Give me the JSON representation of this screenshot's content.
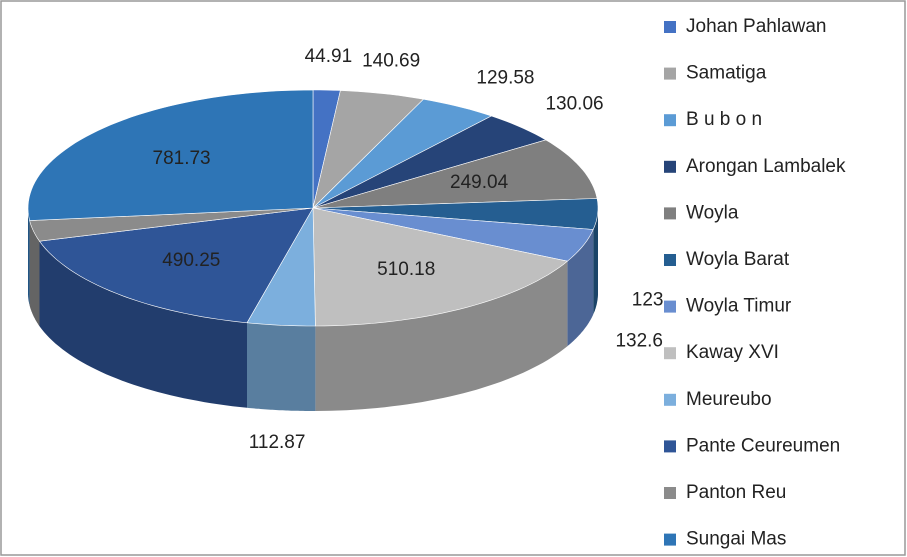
{
  "chart_data": {
    "type": "pie3d",
    "categories": [
      "Johan Pahlawan",
      "Samatiga",
      "B u b o n",
      "Arongan Lambalek",
      "Woyla",
      "Woyla Barat",
      "Woyla Timur",
      "Kaway XVI",
      "Meureubo",
      "Pante Ceureumen",
      "Panton Reu",
      "Sungai Mas"
    ],
    "values": [
      44.91,
      140.69,
      129.58,
      130.06,
      249.04,
      123,
      132.6,
      510.18,
      112.87,
      490.25,
      83.04,
      781.73
    ],
    "colors": [
      "#4472c4",
      "#a5a5a5",
      "#5b9bd5",
      "#264478",
      "#7f7f7f",
      "#255e91",
      "#698ed0",
      "#bfbfbf",
      "#7cafdd",
      "#2f5597",
      "#8b8b8b",
      "#2e75b6"
    ],
    "legend": "right"
  }
}
